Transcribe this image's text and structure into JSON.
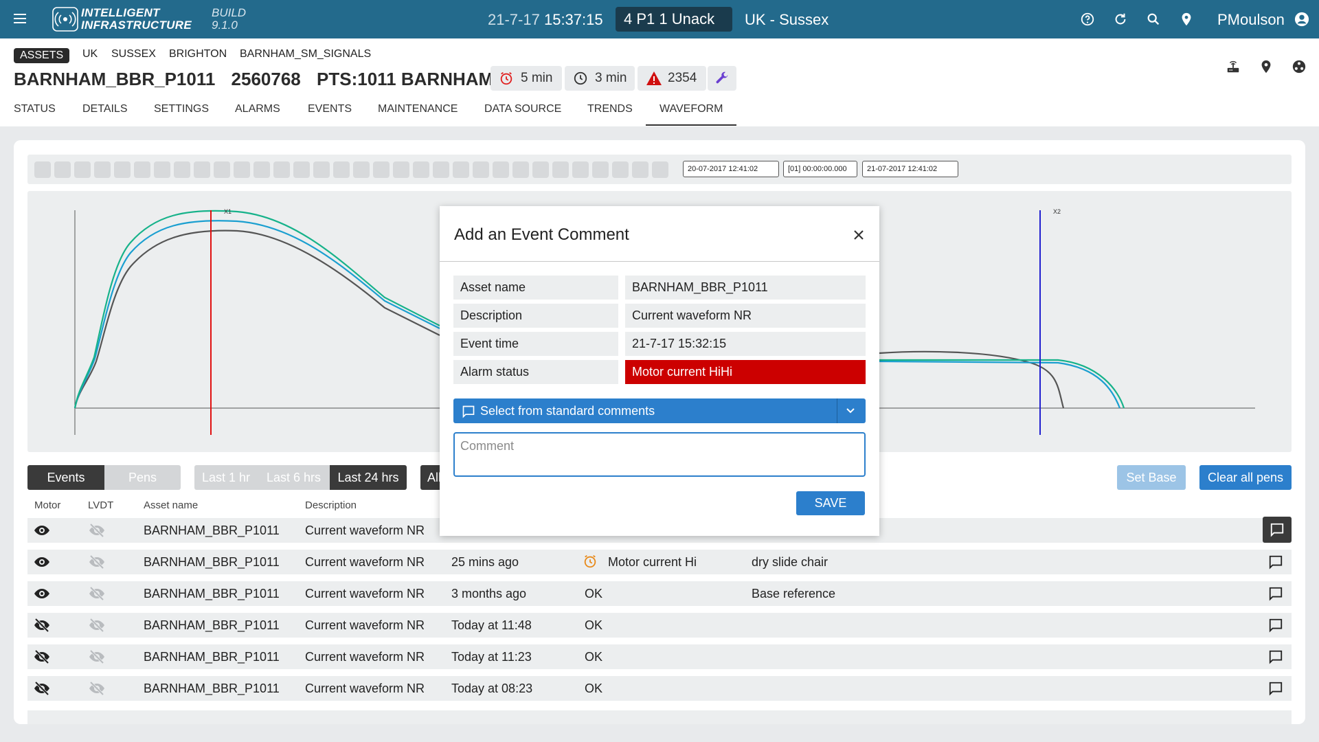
{
  "header": {
    "brand_line1": "INTELLIGENT",
    "brand_line2": "INFRASTRUCTURE",
    "build_label": "BUILD",
    "build_version": "9.1.0",
    "date": "21-7-17",
    "time": "15:37:15",
    "alarm_summary": "4 P1  1 Unack",
    "region": "UK - Sussex",
    "user": "PMoulson",
    "icons": [
      "menu-icon",
      "help-icon",
      "refresh-icon",
      "search-icon",
      "location-icon",
      "user-icon"
    ]
  },
  "breadcrumb": [
    "ASSETS",
    "UK",
    "SUSSEX",
    "BRIGHTON",
    "BARNHAM_SM_SIGNALS"
  ],
  "asset": {
    "name": "BARNHAM_BBR_P1011",
    "id": "2560768",
    "label": "PTS:1011 BARNHAM",
    "chip_alarm": "5 min",
    "chip_clock": "3 min",
    "chip_warning": "2354",
    "colors": {
      "alarm": "#e02020",
      "warning": "#d01010",
      "wrench": "#6a3fd0"
    }
  },
  "tabs": [
    "STATUS",
    "DETAILS",
    "SETTINGS",
    "ALARMS",
    "EVENTS",
    "MAINTENANCE",
    "DATA SOURCE",
    "TRENDS",
    "WAVEFORM"
  ],
  "active_tab": "WAVEFORM",
  "toolbar": {
    "start": "20-07-2017 12:41:02",
    "duration": "[01] 00:00:00.000",
    "end": "21-07-2017 12:41:02"
  },
  "waveform": {
    "cursor_x1": "X1",
    "cursor_x2": "X2",
    "colors": {
      "cursor1": "#e01010",
      "cursor2": "#2020d0",
      "green": "#16b28a",
      "blue": "#1a9fd0",
      "grey": "#555555"
    }
  },
  "controls": {
    "events": "Events",
    "pens": "Pens",
    "last1": "Last 1 hr",
    "last6": "Last 6 hrs",
    "last24": "Last 24 hrs",
    "all": "All",
    "set_base": "Set Base",
    "clear_pens": "Clear all pens"
  },
  "table": {
    "headers": {
      "motor": "Motor",
      "lvdt": "LVDT",
      "asset": "Asset name",
      "desc": "Description"
    },
    "rows": [
      {
        "asset": "BARNHAM_BBR_P1011",
        "desc": "Current waveform NR",
        "time": "",
        "status": "",
        "comment": ""
      },
      {
        "asset": "BARNHAM_BBR_P1011",
        "desc": "Current waveform NR",
        "time": "25 mins ago",
        "status": "Motor current Hi",
        "comment": "dry slide chair"
      },
      {
        "asset": "BARNHAM_BBR_P1011",
        "desc": "Current waveform NR",
        "time": "3 months ago",
        "status": "OK",
        "comment": "Base reference"
      },
      {
        "asset": "BARNHAM_BBR_P1011",
        "desc": "Current waveform NR",
        "time": "Today at 11:48",
        "status": "OK",
        "comment": ""
      },
      {
        "asset": "BARNHAM_BBR_P1011",
        "desc": "Current waveform NR",
        "time": "Today at 11:23",
        "status": "OK",
        "comment": ""
      },
      {
        "asset": "BARNHAM_BBR_P1011",
        "desc": "Current waveform NR",
        "time": "Today at 08:23",
        "status": "OK",
        "comment": ""
      }
    ]
  },
  "modal": {
    "title": "Add an Event Comment",
    "labels": {
      "asset": "Asset name",
      "desc": "Description",
      "time": "Event time",
      "alarm": "Alarm status"
    },
    "values": {
      "asset": "BARNHAM_BBR_P1011",
      "desc": "Current waveform NR",
      "time": "21-7-17 15:32:15",
      "alarm": "Motor current HiHi"
    },
    "select_label": "Select from standard comments",
    "comment_placeholder": "Comment",
    "save": "SAVE"
  }
}
